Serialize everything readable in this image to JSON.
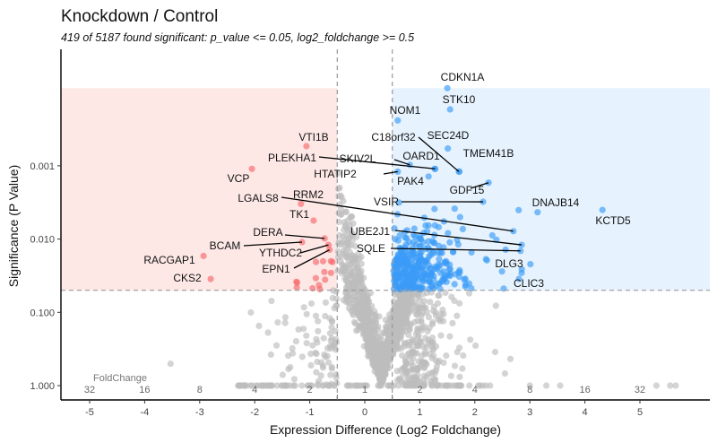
{
  "chart_data": {
    "type": "scatter",
    "title": "Knockdown / Control",
    "subtitle": "419 of 5187 found significant: p_value <= 0.05, log2_foldchange >= 0.5",
    "xlabel": "Expression Difference (Log2 Foldchange)",
    "ylabel": "Significance (P Value)",
    "xlim": [
      -5.5,
      6.3
    ],
    "ylim_neg_log10_p": [
      -0.2,
      4.6
    ],
    "y_scale": "reversed log10 (p value)",
    "x_ticks": [
      -5,
      -4,
      -3,
      -2,
      -1,
      0,
      1,
      2,
      3,
      4,
      5
    ],
    "x_tick_labels": [
      "-5",
      "-4",
      "-3",
      "-2",
      "-1",
      "0",
      "1",
      "2",
      "3",
      "4",
      "5"
    ],
    "y_ticks": [
      0.001,
      0.01,
      0.1,
      1
    ],
    "y_tick_labels": [
      "0.001",
      "0.010",
      "0.100",
      "1.000"
    ],
    "foldchange_label": "FoldChange",
    "foldchange_ticks": [
      "32",
      "16",
      "8",
      "4",
      "2",
      "1",
      "2",
      "4",
      "8",
      "16",
      "32"
    ],
    "thresholds": {
      "p_value": 0.05,
      "log2_foldchange": 0.5
    },
    "total_genes": 5187,
    "significant_genes": 419,
    "grid": false,
    "legend": "none",
    "colors": {
      "down": "#f8696b",
      "up": "#3a9bf7",
      "nonsig": "#bdbdbd",
      "down_region": "#fde8e6",
      "up_region": "#e6f2fd"
    },
    "labeled_points": [
      {
        "name": "VTI1B",
        "x": -1.06,
        "p": 0.00054,
        "group": "down"
      },
      {
        "name": "VCP",
        "x": -2.05,
        "p": 0.0011,
        "group": "down"
      },
      {
        "name": "RRM2",
        "x": -1.16,
        "p": 0.0033,
        "group": "down"
      },
      {
        "name": "TK1",
        "x": -0.93,
        "p": 0.0056,
        "group": "down"
      },
      {
        "name": "DERA",
        "x": -0.73,
        "p": 0.0098,
        "group": "down"
      },
      {
        "name": "BCAM",
        "x": -1.14,
        "p": 0.011,
        "group": "down"
      },
      {
        "name": "YTHDC2",
        "x": -0.66,
        "p": 0.012,
        "group": "down"
      },
      {
        "name": "EPN1",
        "x": -0.64,
        "p": 0.014,
        "group": "down"
      },
      {
        "name": "RACGAP1",
        "x": -2.93,
        "p": 0.017,
        "group": "down"
      },
      {
        "name": "CKS2",
        "x": -2.8,
        "p": 0.035,
        "group": "down"
      },
      {
        "name": "CDKN1A",
        "x": 1.5,
        "p": 8.7e-05,
        "group": "up"
      },
      {
        "name": "STK10",
        "x": 1.55,
        "p": 0.00017,
        "group": "up"
      },
      {
        "name": "NOM1",
        "x": 0.6,
        "p": 0.00024,
        "group": "up"
      },
      {
        "name": "SEC24D",
        "x": 1.51,
        "p": 0.00058,
        "group": "up"
      },
      {
        "name": "TMEM41B",
        "x": 1.72,
        "p": 0.0012,
        "group": "up"
      },
      {
        "name": "C18orf32",
        "x": 1.71,
        "p": 0.0012,
        "group": "up"
      },
      {
        "name": "OARD1",
        "x": 1.27,
        "p": 0.0011,
        "group": "up"
      },
      {
        "name": "SKIV2L",
        "x": 0.82,
        "p": 0.00097,
        "group": "up"
      },
      {
        "name": "PLEKHA1",
        "x": 1.28,
        "p": 0.0011,
        "group": "up"
      },
      {
        "name": "HTATIP2",
        "x": 0.6,
        "p": 0.0012,
        "group": "up"
      },
      {
        "name": "PAK4",
        "x": 1.16,
        "p": 0.0014,
        "group": "up"
      },
      {
        "name": "GDF15",
        "x": 2.25,
        "p": 0.0017,
        "group": "up"
      },
      {
        "name": "VSIR",
        "x": 2.15,
        "p": 0.0031,
        "group": "up"
      },
      {
        "name": "DNAJB14",
        "x": 3.14,
        "p": 0.0043,
        "group": "up"
      },
      {
        "name": "KCTD5",
        "x": 4.32,
        "p": 0.004,
        "group": "up"
      },
      {
        "name": "LGALS8",
        "x": 2.7,
        "p": 0.0078,
        "group": "up"
      },
      {
        "name": "UBE2J1",
        "x": 2.85,
        "p": 0.012,
        "group": "up"
      },
      {
        "name": "SQLE",
        "x": 2.83,
        "p": 0.0145,
        "group": "up"
      },
      {
        "name": "DLG3",
        "x": 3.01,
        "p": 0.022,
        "group": "up"
      },
      {
        "name": "CLIC3",
        "x": 2.85,
        "p": 0.029,
        "group": "up"
      }
    ]
  }
}
